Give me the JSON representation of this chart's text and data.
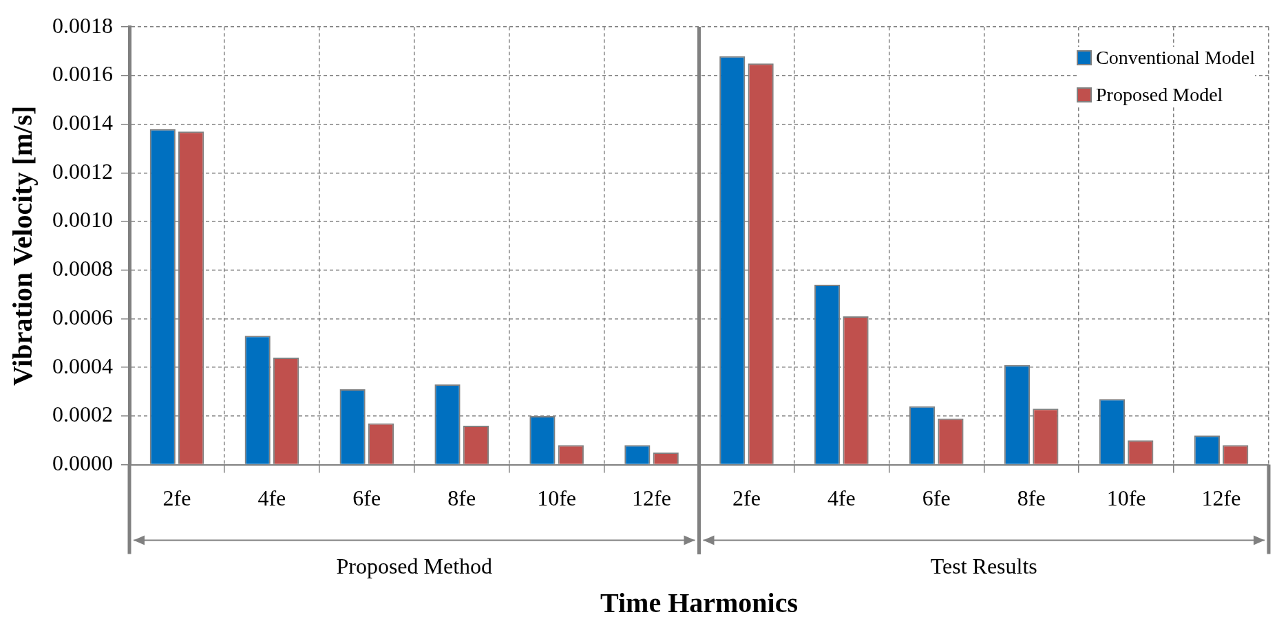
{
  "chart_data": {
    "type": "bar",
    "xlabel": "Time Harmonics",
    "ylabel": "Vibration Velocity [m/s]",
    "categories": [
      "2fe",
      "4fe",
      "6fe",
      "8fe",
      "10fe",
      "12fe",
      "2fe",
      "4fe",
      "6fe",
      "8fe",
      "10fe",
      "12fe"
    ],
    "series": [
      {
        "name": "Conventional Model",
        "color": "#0070c0",
        "values": [
          0.00138,
          0.00053,
          0.00031,
          0.00033,
          0.0002,
          8e-05,
          0.00168,
          0.00074,
          0.00024,
          0.00041,
          0.00027,
          0.00012
        ]
      },
      {
        "name": "Proposed Model",
        "color": "#c0504d",
        "values": [
          0.00137,
          0.00044,
          0.00017,
          0.00016,
          8e-05,
          5e-05,
          0.00165,
          0.00061,
          0.00019,
          0.00023,
          0.0001,
          8e-05
        ]
      }
    ],
    "ylim": [
      0,
      0.0018
    ],
    "yticks": [
      {
        "value": 0,
        "label": "0.0000"
      },
      {
        "value": 0.0002,
        "label": "0.0002"
      },
      {
        "value": 0.0004,
        "label": "0.0004"
      },
      {
        "value": 0.0006,
        "label": "0.0006"
      },
      {
        "value": 0.0008,
        "label": "0.0008"
      },
      {
        "value": 0.001,
        "label": "0.0010"
      },
      {
        "value": 0.0012,
        "label": "0.0012"
      },
      {
        "value": 0.0014,
        "label": "0.0014"
      },
      {
        "value": 0.0016,
        "label": "0.0016"
      },
      {
        "value": 0.0018,
        "label": "0.0018"
      }
    ],
    "annotations": [
      "Proposed Method",
      "Test Results"
    ],
    "grid": true,
    "legend": "top right"
  }
}
